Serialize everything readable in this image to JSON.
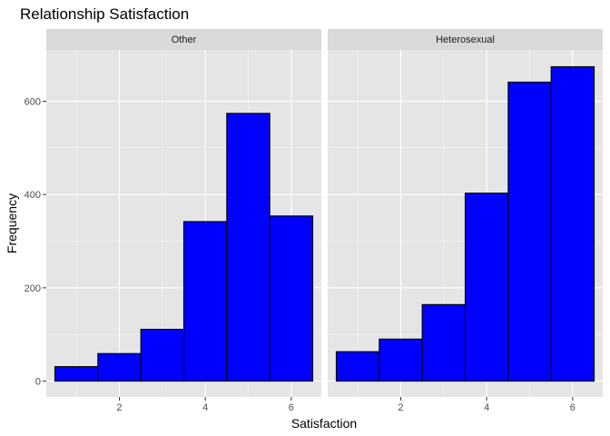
{
  "chart_data": {
    "type": "bar",
    "title": "Relationship Satisfaction",
    "xlabel": "Satisfaction",
    "ylabel": "Frequency",
    "xlim": [
      0.3,
      6.7
    ],
    "ylim": [
      -34,
      710
    ],
    "x_ticks": [
      2,
      4,
      6
    ],
    "y_ticks": [
      0,
      200,
      400,
      600
    ],
    "bin_width": 1,
    "bins": [
      1,
      2,
      3,
      4,
      5,
      6
    ],
    "grid": true,
    "colors": {
      "fill": "#0000ff",
      "outline": "#000000",
      "panel": "#e5e5e5",
      "strip": "#d9d9d9",
      "grid": "#ffffff"
    },
    "panels": [
      {
        "name": "Other",
        "values": [
          31,
          59,
          111,
          342,
          574,
          354
        ]
      },
      {
        "name": "Heterosexual",
        "values": [
          63,
          90,
          164,
          403,
          641,
          674
        ]
      }
    ]
  }
}
